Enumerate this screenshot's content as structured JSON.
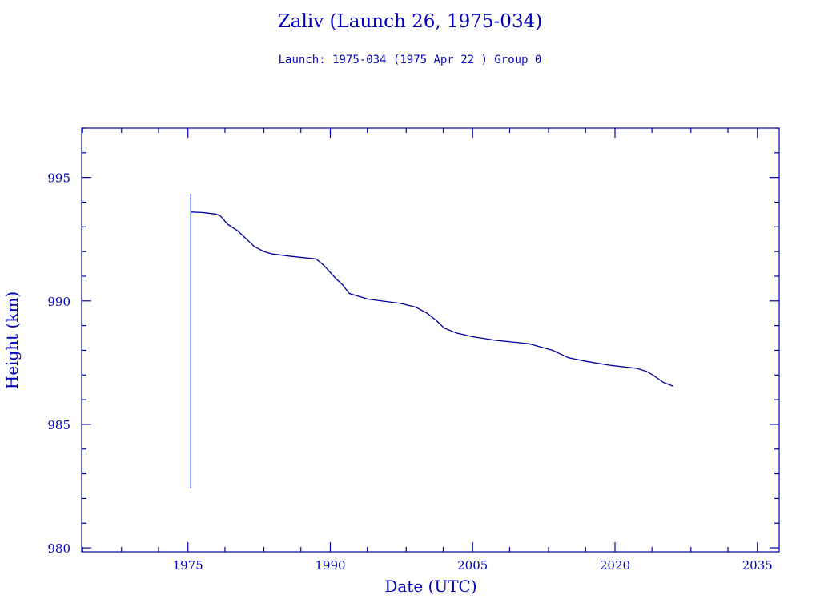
{
  "chart_data": {
    "type": "line",
    "title": "Zaliv (Launch 26, 1975-034)",
    "subtitle": "Launch: 1975-034  (1975 Apr 22 )  Group 0",
    "xlabel": "Date (UTC)",
    "ylabel": "Height (km)",
    "xlim": [
      1963.8,
      2037.3
    ],
    "ylim": [
      979.84,
      997.0
    ],
    "xticks": [
      1975,
      1990,
      2005,
      2020,
      2035
    ],
    "yticks": [
      980,
      985,
      990,
      995
    ],
    "grid": false,
    "color": "#0000a0",
    "spike": {
      "x": 1975.3,
      "ymin": 982.4,
      "ymax": 994.35
    },
    "series": [
      {
        "name": "Height",
        "x": [
          1975.3,
          1976.5,
          1977.9,
          1978.4,
          1979.2,
          1980.2,
          1980.9,
          1982.0,
          1983.0,
          1983.9,
          1986.0,
          1988.5,
          1989.3,
          1990.0,
          1990.6,
          1991.3,
          1992.0,
          1994.0,
          1997.4,
          1999.0,
          2000.2,
          2001.2,
          2002.0,
          2003.3,
          2005.0,
          2007.5,
          2010.9,
          2013.4,
          2015.1,
          2017.0,
          2019.3,
          2022.3,
          2023.3,
          2024.0,
          2025.1,
          2026.1
        ],
        "y": [
          993.6,
          993.58,
          993.52,
          993.45,
          993.1,
          992.85,
          992.6,
          992.2,
          992.0,
          991.9,
          991.8,
          991.7,
          991.45,
          991.15,
          990.9,
          990.65,
          990.3,
          990.07,
          989.9,
          989.75,
          989.5,
          989.2,
          988.9,
          988.7,
          988.55,
          988.4,
          988.27,
          988.0,
          987.7,
          987.55,
          987.4,
          987.27,
          987.15,
          987.0,
          986.7,
          986.55
        ]
      }
    ]
  }
}
